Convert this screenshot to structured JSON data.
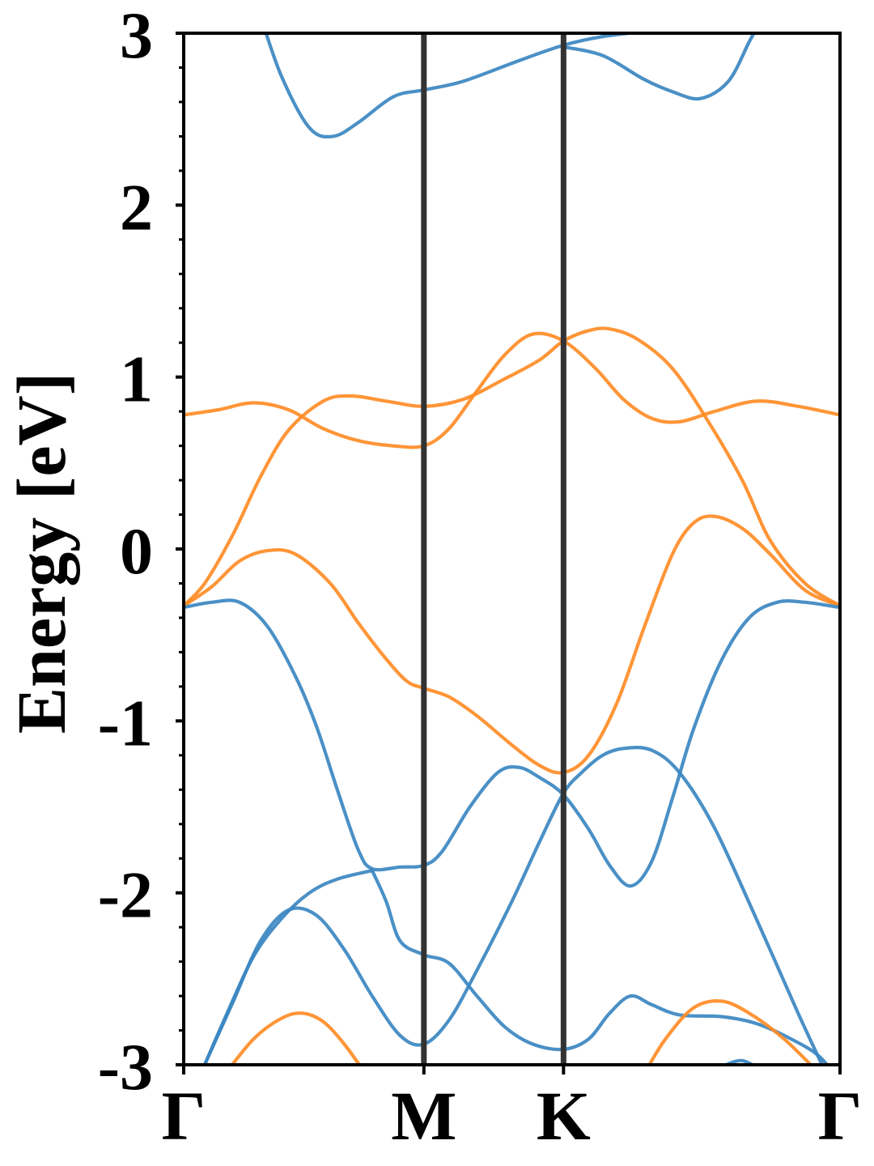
{
  "chart_data": {
    "type": "line",
    "title": "",
    "xlabel": "",
    "ylabel": "Energy [eV]",
    "ylim": [
      -3,
      3
    ],
    "xlim": [
      0,
      4.7
    ],
    "grid": false,
    "legend": "none",
    "colors": {
      "spin_a": "#3B87C1",
      "spin_b": "#FF8C26",
      "kline": "#333333",
      "axis": "#000000"
    },
    "x_ticks": [
      {
        "label": "Γ",
        "x": 0
      },
      {
        "label": "M",
        "x": 1.72
      },
      {
        "label": "K",
        "x": 2.72
      },
      {
        "label": "Γ",
        "x": 4.7
      }
    ],
    "y_ticks": [
      {
        "label": "-3",
        "y": -3
      },
      {
        "label": "-2",
        "y": -2
      },
      {
        "label": "-1",
        "y": -1
      },
      {
        "label": "0",
        "y": 0
      },
      {
        "label": "1",
        "y": 1
      },
      {
        "label": "2",
        "y": 2
      },
      {
        "label": "3",
        "y": 3
      }
    ],
    "series": [
      {
        "color": "spin_a",
        "points": [
          [
            0.55,
            3.1
          ],
          [
            0.7,
            2.75
          ],
          [
            0.9,
            2.45
          ],
          [
            1.07,
            2.4
          ],
          [
            1.25,
            2.48
          ],
          [
            1.5,
            2.63
          ],
          [
            1.72,
            2.67
          ],
          [
            2.0,
            2.72
          ],
          [
            2.4,
            2.84
          ],
          [
            2.72,
            2.93
          ],
          [
            3.0,
            2.98
          ],
          [
            3.4,
            3.02
          ]
        ]
      },
      {
        "color": "spin_a",
        "points": [
          [
            2.72,
            2.92
          ],
          [
            3.0,
            2.87
          ],
          [
            3.3,
            2.73
          ],
          [
            3.5,
            2.66
          ],
          [
            3.7,
            2.62
          ],
          [
            3.9,
            2.72
          ],
          [
            4.05,
            2.95
          ],
          [
            4.15,
            3.1
          ]
        ]
      },
      {
        "color": "spin_b",
        "points": [
          [
            0,
            0.78
          ],
          [
            0.25,
            0.81
          ],
          [
            0.5,
            0.85
          ],
          [
            0.75,
            0.81
          ],
          [
            1.0,
            0.7
          ],
          [
            1.25,
            0.63
          ],
          [
            1.5,
            0.6
          ],
          [
            1.72,
            0.6
          ],
          [
            1.9,
            0.7
          ],
          [
            2.1,
            0.92
          ],
          [
            2.3,
            1.13
          ],
          [
            2.5,
            1.25
          ],
          [
            2.72,
            1.21
          ],
          [
            2.95,
            1.05
          ],
          [
            3.15,
            0.87
          ],
          [
            3.35,
            0.76
          ],
          [
            3.55,
            0.74
          ],
          [
            3.8,
            0.8
          ],
          [
            4.1,
            0.86
          ],
          [
            4.4,
            0.83
          ],
          [
            4.7,
            0.78
          ]
        ]
      },
      {
        "color": "spin_b",
        "points": [
          [
            0,
            -0.33
          ],
          [
            0.15,
            -0.2
          ],
          [
            0.35,
            0.08
          ],
          [
            0.55,
            0.42
          ],
          [
            0.75,
            0.69
          ],
          [
            1.0,
            0.86
          ],
          [
            1.2,
            0.89
          ],
          [
            1.45,
            0.86
          ],
          [
            1.72,
            0.83
          ],
          [
            2.0,
            0.87
          ],
          [
            2.3,
            0.99
          ],
          [
            2.55,
            1.1
          ],
          [
            2.72,
            1.21
          ],
          [
            2.9,
            1.27
          ],
          [
            3.05,
            1.28
          ],
          [
            3.25,
            1.22
          ],
          [
            3.5,
            1.05
          ],
          [
            3.75,
            0.75
          ],
          [
            4.0,
            0.4
          ],
          [
            4.2,
            0.05
          ],
          [
            4.45,
            -0.2
          ],
          [
            4.7,
            -0.33
          ]
        ]
      },
      {
        "color": "spin_b",
        "points": [
          [
            0,
            -0.33
          ],
          [
            0.2,
            -0.22
          ],
          [
            0.4,
            -0.07
          ],
          [
            0.6,
            -0.01
          ],
          [
            0.8,
            -0.03
          ],
          [
            1.05,
            -0.2
          ],
          [
            1.25,
            -0.43
          ],
          [
            1.45,
            -0.64
          ],
          [
            1.6,
            -0.77
          ],
          [
            1.72,
            -0.81
          ],
          [
            1.9,
            -0.86
          ],
          [
            2.1,
            -0.97
          ],
          [
            2.35,
            -1.14
          ],
          [
            2.55,
            -1.26
          ],
          [
            2.72,
            -1.3
          ],
          [
            2.9,
            -1.2
          ],
          [
            3.1,
            -0.9
          ],
          [
            3.3,
            -0.45
          ],
          [
            3.5,
            -0.03
          ],
          [
            3.65,
            0.15
          ],
          [
            3.8,
            0.19
          ],
          [
            4.0,
            0.12
          ],
          [
            4.2,
            -0.03
          ],
          [
            4.45,
            -0.24
          ],
          [
            4.7,
            -0.33
          ]
        ]
      },
      {
        "color": "spin_a",
        "points": [
          [
            0,
            -0.34
          ],
          [
            0.2,
            -0.31
          ],
          [
            0.4,
            -0.31
          ],
          [
            0.6,
            -0.45
          ],
          [
            0.8,
            -0.74
          ],
          [
            0.95,
            -1.03
          ],
          [
            1.1,
            -1.4
          ],
          [
            1.25,
            -1.75
          ],
          [
            1.35,
            -1.86
          ],
          [
            1.55,
            -1.85
          ],
          [
            1.72,
            -1.84
          ],
          [
            1.85,
            -1.76
          ],
          [
            2.05,
            -1.5
          ],
          [
            2.25,
            -1.3
          ],
          [
            2.4,
            -1.27
          ],
          [
            2.55,
            -1.33
          ],
          [
            2.72,
            -1.43
          ],
          [
            2.9,
            -1.63
          ],
          [
            3.05,
            -1.84
          ],
          [
            3.2,
            -1.96
          ],
          [
            3.35,
            -1.82
          ],
          [
            3.5,
            -1.45
          ],
          [
            3.65,
            -1.05
          ],
          [
            3.85,
            -0.65
          ],
          [
            4.05,
            -0.4
          ],
          [
            4.25,
            -0.31
          ],
          [
            4.45,
            -0.31
          ],
          [
            4.7,
            -0.34
          ]
        ]
      },
      {
        "color": "spin_a",
        "points": [
          [
            0.15,
            -3.0
          ],
          [
            0.3,
            -2.72
          ],
          [
            0.5,
            -2.37
          ],
          [
            0.7,
            -2.15
          ],
          [
            0.9,
            -2.0
          ],
          [
            1.1,
            -1.92
          ],
          [
            1.35,
            -1.87
          ]
        ]
      },
      {
        "color": "spin_a",
        "points": [
          [
            0.15,
            -3.0
          ],
          [
            0.35,
            -2.64
          ],
          [
            0.55,
            -2.28
          ],
          [
            0.75,
            -2.1
          ],
          [
            0.95,
            -2.13
          ],
          [
            1.15,
            -2.33
          ],
          [
            1.35,
            -2.6
          ],
          [
            1.55,
            -2.83
          ],
          [
            1.72,
            -2.88
          ],
          [
            1.9,
            -2.74
          ],
          [
            2.1,
            -2.45
          ],
          [
            2.35,
            -2.05
          ],
          [
            2.55,
            -1.7
          ],
          [
            2.72,
            -1.42
          ],
          [
            2.85,
            -1.3
          ],
          [
            3.0,
            -1.2
          ],
          [
            3.15,
            -1.16
          ],
          [
            3.35,
            -1.17
          ],
          [
            3.55,
            -1.3
          ],
          [
            3.8,
            -1.62
          ],
          [
            4.1,
            -2.15
          ],
          [
            4.4,
            -2.7
          ],
          [
            4.6,
            -3.05
          ]
        ]
      },
      {
        "color": "spin_a",
        "points": [
          [
            1.35,
            -1.87
          ],
          [
            1.45,
            -2.05
          ],
          [
            1.55,
            -2.28
          ],
          [
            1.72,
            -2.36
          ],
          [
            1.9,
            -2.41
          ],
          [
            2.1,
            -2.6
          ],
          [
            2.3,
            -2.78
          ],
          [
            2.5,
            -2.88
          ],
          [
            2.72,
            -2.91
          ],
          [
            2.9,
            -2.85
          ],
          [
            3.05,
            -2.7
          ],
          [
            3.2,
            -2.6
          ],
          [
            3.35,
            -2.65
          ],
          [
            3.55,
            -2.71
          ],
          [
            3.85,
            -2.72
          ],
          [
            4.1,
            -2.76
          ],
          [
            4.35,
            -2.85
          ],
          [
            4.55,
            -2.95
          ],
          [
            4.7,
            -3.1
          ]
        ]
      },
      {
        "color": "spin_a",
        "points": [
          [
            3.75,
            -3.05
          ],
          [
            3.95,
            -2.98
          ],
          [
            4.05,
            -2.99
          ],
          [
            4.15,
            -3.05
          ]
        ]
      },
      {
        "color": "spin_b",
        "points": [
          [
            0.3,
            -3.05
          ],
          [
            0.5,
            -2.85
          ],
          [
            0.7,
            -2.73
          ],
          [
            0.85,
            -2.7
          ],
          [
            1.0,
            -2.75
          ],
          [
            1.15,
            -2.88
          ],
          [
            1.3,
            -3.05
          ]
        ]
      },
      {
        "color": "spin_b",
        "points": [
          [
            3.3,
            -3.05
          ],
          [
            3.45,
            -2.85
          ],
          [
            3.65,
            -2.67
          ],
          [
            3.85,
            -2.63
          ],
          [
            4.05,
            -2.7
          ],
          [
            4.3,
            -2.85
          ],
          [
            4.55,
            -3.05
          ]
        ]
      }
    ]
  }
}
